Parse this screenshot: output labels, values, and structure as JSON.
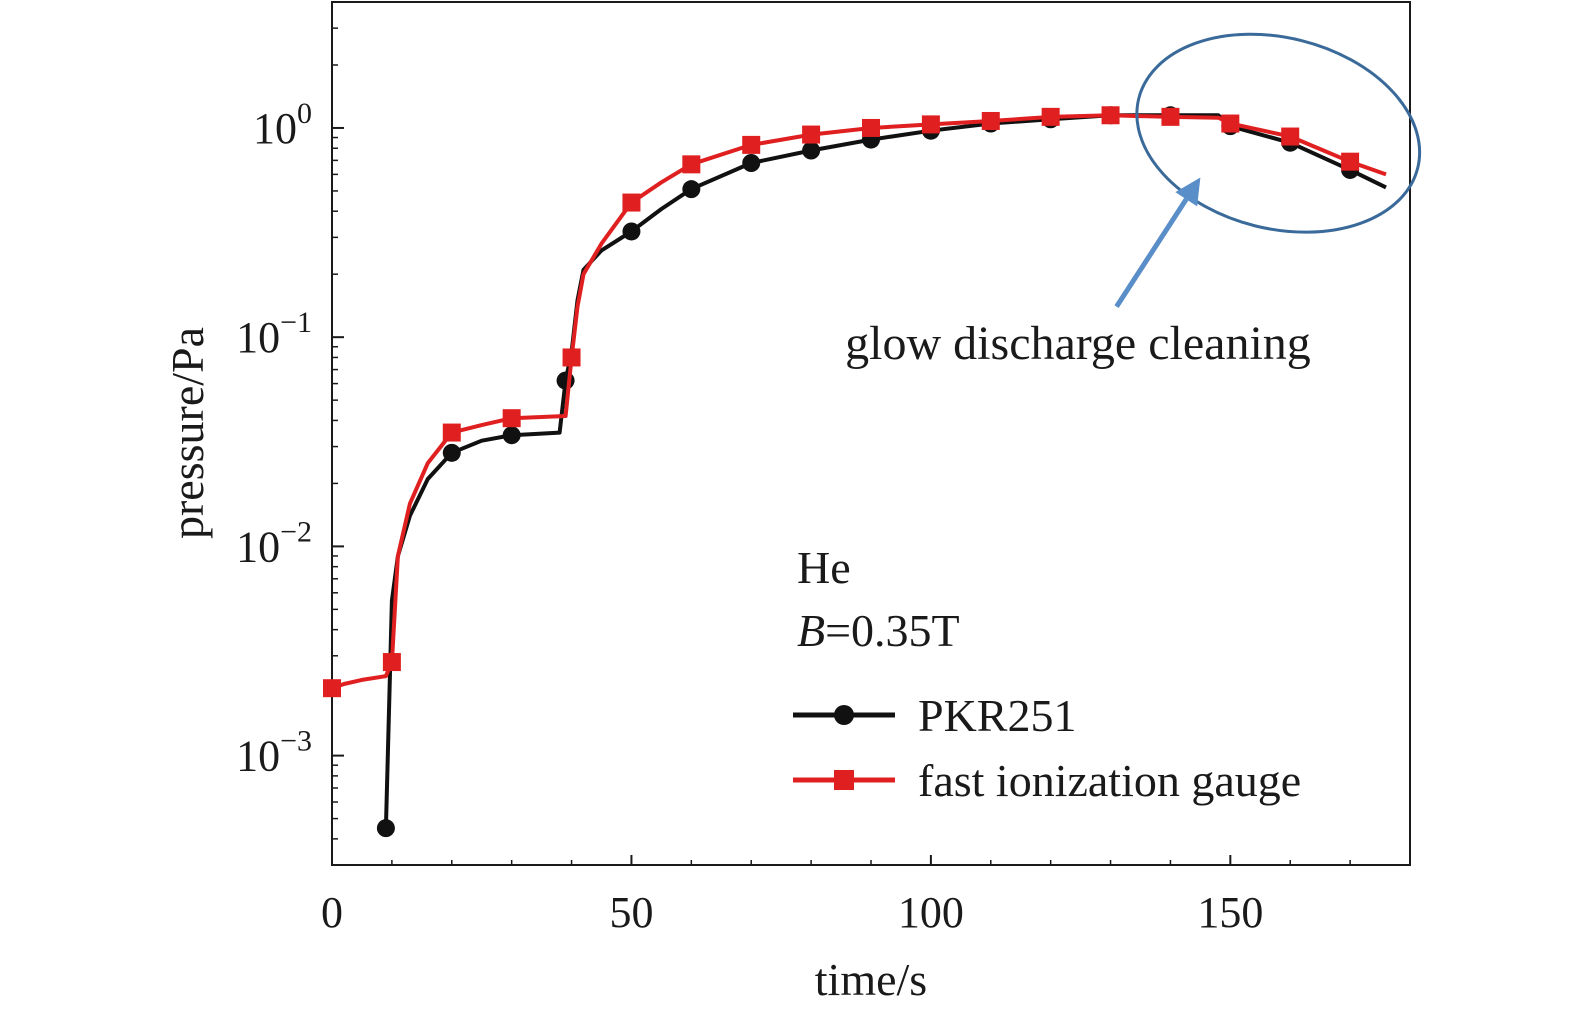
{
  "chart_data": {
    "type": "line",
    "xlabel": "time/s",
    "ylabel": "pressure/Pa",
    "xlim": [
      0,
      180
    ],
    "ylim": [
      0.0003,
      4.0
    ],
    "yscale": "log",
    "grid": false,
    "x_ticks": [
      0,
      50,
      100,
      150
    ],
    "x_tick_labels": [
      "0",
      "50",
      "100",
      "150"
    ],
    "y_ticks": [
      0.001,
      0.01,
      0.1,
      1
    ],
    "y_tick_labels": [
      {
        "base": "10",
        "exp": "−3"
      },
      {
        "base": "10",
        "exp": "−2"
      },
      {
        "base": "10",
        "exp": "−1"
      },
      {
        "base": "10",
        "exp": "0"
      }
    ],
    "legend_placement": "bottom-right",
    "conditions": {
      "gas": "He",
      "field_var": "B",
      "field_value": "=0.35T"
    },
    "series": [
      {
        "name": "PKR251",
        "color": "#111111",
        "marker": "circle",
        "x": [
          9,
          10,
          11,
          13,
          16,
          20,
          25,
          30,
          38,
          39,
          40,
          41,
          42,
          45,
          50,
          55,
          60,
          70,
          80,
          90,
          100,
          110,
          120,
          130,
          140,
          148,
          150,
          160,
          170,
          176
        ],
        "y": [
          0.00045,
          0.0055,
          0.009,
          0.014,
          0.021,
          0.028,
          0.032,
          0.034,
          0.035,
          0.062,
          0.085,
          0.15,
          0.21,
          0.26,
          0.32,
          0.41,
          0.51,
          0.68,
          0.78,
          0.88,
          0.97,
          1.05,
          1.1,
          1.15,
          1.15,
          1.15,
          1.02,
          0.85,
          0.63,
          0.52
        ],
        "marker_x": [
          9,
          20,
          30,
          39,
          50,
          60,
          70,
          80,
          90,
          100,
          110,
          120,
          130,
          140,
          150,
          160,
          170
        ],
        "marker_y": [
          0.00045,
          0.028,
          0.034,
          0.062,
          0.32,
          0.51,
          0.68,
          0.78,
          0.88,
          0.97,
          1.05,
          1.1,
          1.15,
          1.15,
          1.02,
          0.85,
          0.63
        ]
      },
      {
        "name": "fast ionization gauge",
        "color": "#e02020",
        "marker": "square",
        "x": [
          0,
          2,
          5,
          9,
          10,
          11,
          13,
          16,
          20,
          25,
          30,
          39,
          40,
          41,
          42,
          45,
          50,
          55,
          60,
          70,
          80,
          90,
          100,
          110,
          120,
          130,
          140,
          148,
          150,
          160,
          170,
          176
        ],
        "y": [
          0.0021,
          0.0022,
          0.0023,
          0.0024,
          0.0028,
          0.009,
          0.016,
          0.025,
          0.035,
          0.038,
          0.041,
          0.042,
          0.08,
          0.14,
          0.2,
          0.28,
          0.44,
          0.55,
          0.67,
          0.83,
          0.93,
          1.0,
          1.04,
          1.08,
          1.13,
          1.15,
          1.13,
          1.12,
          1.05,
          0.91,
          0.69,
          0.6
        ],
        "marker_x": [
          0,
          10,
          20,
          30,
          40,
          50,
          60,
          70,
          80,
          90,
          100,
          110,
          120,
          130,
          140,
          150,
          160,
          170
        ],
        "marker_y": [
          0.0021,
          0.0028,
          0.035,
          0.041,
          0.08,
          0.44,
          0.67,
          0.83,
          0.93,
          1.0,
          1.04,
          1.08,
          1.13,
          1.15,
          1.13,
          1.05,
          0.91,
          0.69
        ]
      }
    ],
    "annotation": {
      "text": "glow discharge cleaning",
      "color": "#5a8ec8",
      "ellipse_color": "#3a6a9a",
      "ellipse_x_range": [
        134,
        182
      ],
      "ellipse_y_range": [
        0.33,
        2.7
      ],
      "arrow_tip": [
        145,
        0.58
      ],
      "arrow_tail": [
        131,
        0.14
      ]
    }
  }
}
